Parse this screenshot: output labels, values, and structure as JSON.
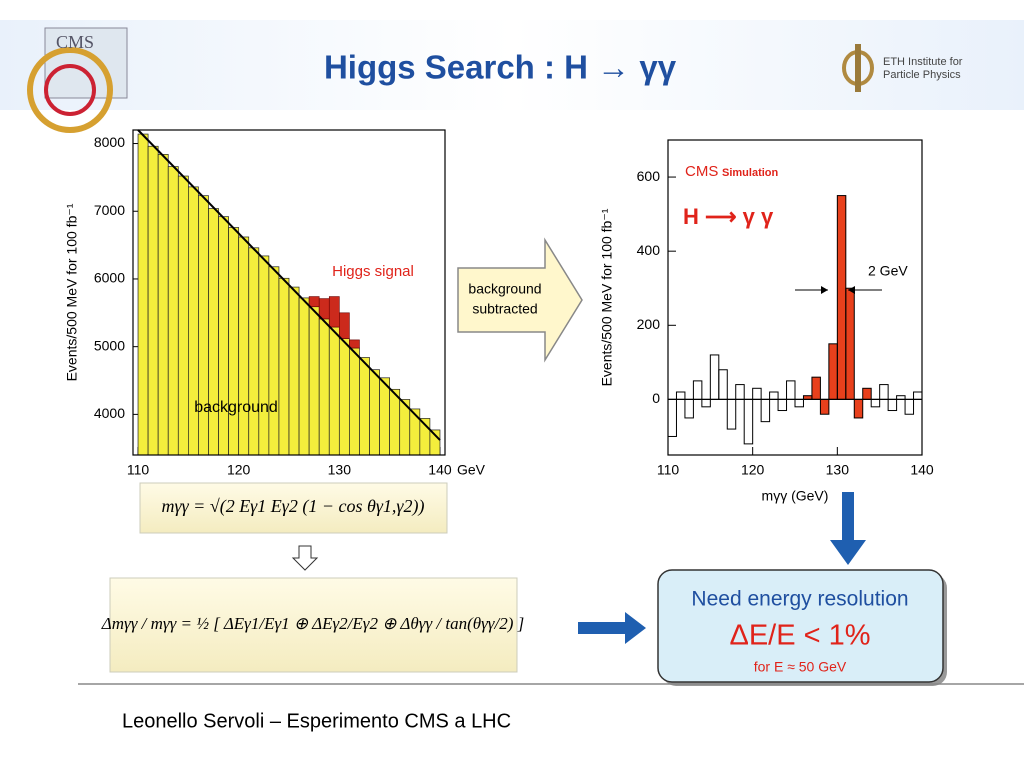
{
  "header": {
    "title": "Higgs Search : H → γγ",
    "logo_left": "CMS",
    "logo_right": [
      "ETH Institute for",
      "Particle Physics"
    ]
  },
  "chart_data": [
    {
      "type": "histogram",
      "ylabel": "Events/500 MeV for 100 fb⁻¹",
      "xunit": "GeV",
      "bins": [
        110,
        111,
        112,
        113,
        114,
        115,
        116,
        117,
        118,
        119,
        120,
        121,
        122,
        123,
        124,
        125,
        126,
        127,
        128,
        129,
        130,
        131,
        132,
        133,
        134,
        135,
        136,
        137,
        138,
        139,
        140
      ],
      "series": [
        {
          "color": "#f4ee3c",
          "values": [
            8140,
            7960,
            7840,
            7660,
            7520,
            7360,
            7230,
            7040,
            6920,
            6760,
            6620,
            6460,
            6340,
            6180,
            6010,
            5880,
            5720,
            5590,
            5410,
            5290,
            5120,
            4980,
            4840,
            4660,
            4540,
            4370,
            4220,
            4080,
            3940,
            3770
          ]
        },
        {
          "color": "#cc2a1c",
          "values": [
            null,
            null,
            null,
            null,
            null,
            null,
            null,
            null,
            null,
            null,
            null,
            null,
            null,
            null,
            null,
            null,
            null,
            150,
            300,
            450,
            380,
            120,
            null,
            null,
            null,
            null,
            null,
            null,
            null,
            null
          ]
        }
      ],
      "fit": {
        "x": [
          110,
          140
        ],
        "values": [
          8200,
          3620
        ]
      },
      "xlim": [
        109.5,
        140.5
      ],
      "ylim": [
        3400,
        8200
      ],
      "xticks": [
        110,
        120,
        130,
        140
      ],
      "yticks": [
        4000,
        5000,
        6000,
        7000,
        8000
      ],
      "annotations": [
        "Higgs signal",
        "background"
      ]
    },
    {
      "type": "histogram",
      "xlabel": "mγγ (GeV)",
      "ylabel": "Events/500 MeV for 100 fb⁻¹",
      "bins": [
        110,
        111,
        112,
        113,
        114,
        115,
        116,
        117,
        118,
        119,
        120,
        121,
        122,
        123,
        124,
        125,
        126,
        127,
        128,
        129,
        130,
        131,
        132,
        133,
        134,
        135,
        136,
        137,
        138,
        139,
        140
      ],
      "series": [
        {
          "color": "#e8401c",
          "values": [
            null,
            null,
            null,
            null,
            null,
            null,
            null,
            null,
            null,
            null,
            null,
            null,
            null,
            null,
            null,
            null,
            10,
            60,
            -40,
            150,
            550,
            300,
            -50,
            30,
            null,
            null,
            null,
            null,
            null,
            null
          ]
        },
        {
          "color": "#000000",
          "values": [
            -100,
            20,
            -50,
            50,
            -20,
            120,
            80,
            -80,
            40,
            -120,
            30,
            -60,
            20,
            -30,
            50,
            -20,
            10,
            60,
            -40,
            150,
            550,
            300,
            -50,
            30,
            -20,
            40,
            -30,
            10,
            -40,
            20
          ]
        }
      ],
      "xlim": [
        110,
        140
      ],
      "ylim": [
        -150,
        700
      ],
      "xticks": [
        110,
        120,
        130,
        140
      ],
      "yticks": [
        0,
        200,
        400,
        600
      ],
      "annotations": [
        "CMS",
        "Simulation",
        "H ⟶ γ γ",
        "2 GeV"
      ]
    }
  ],
  "arrow_label": [
    "background",
    "subtracted"
  ],
  "formulas": [
    "mγγ = √(2 Eγ1 Eγ2 (1 − cos θγ1,γ2))",
    "Δmγγ / mγγ = ½ [ ΔEγ1/Eγ1 ⊕ ΔEγ2/Eγ2 ⊕ Δθγγ / tan(θγγ/2) ]"
  ],
  "result": {
    "line1": "Need energy resolution",
    "line2": "ΔE/E < 1%",
    "line3": "for E ≈ 50 GeV"
  },
  "footer": "Leonello Servoli – Esperimento CMS a LHC"
}
